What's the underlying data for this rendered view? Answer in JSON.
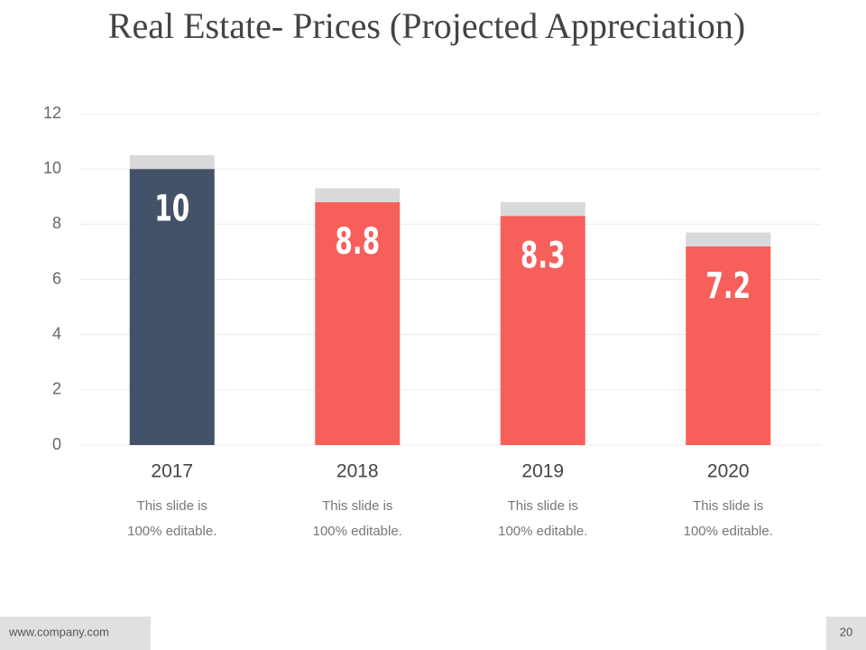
{
  "title": "Real Estate- Prices (Projected Appreciation)",
  "chart_data": {
    "type": "bar",
    "stacked": true,
    "categories": [
      "2017",
      "2018",
      "2019",
      "2020"
    ],
    "series": [
      {
        "colors": [
          "#435268",
          "#f65f5a",
          "#f65f5a",
          "#f65f5a"
        ],
        "values": [
          10,
          8.8,
          8.3,
          7.2
        ],
        "show_labels": true
      },
      {
        "color": "#d9d9d9",
        "values": [
          0.5,
          0.5,
          0.5,
          0.5
        ]
      }
    ],
    "captions": [
      [
        "This slide is",
        "100% editable."
      ],
      [
        "This slide is",
        "100% editable."
      ],
      [
        "This slide is",
        "100% editable."
      ],
      [
        "This slide is",
        "100% editable."
      ]
    ],
    "ylim": [
      0,
      12
    ],
    "yticks": [
      0,
      2,
      4,
      6,
      8,
      10,
      12
    ],
    "grid": true
  },
  "footer": {
    "url": "www.company.com",
    "page": "20"
  }
}
